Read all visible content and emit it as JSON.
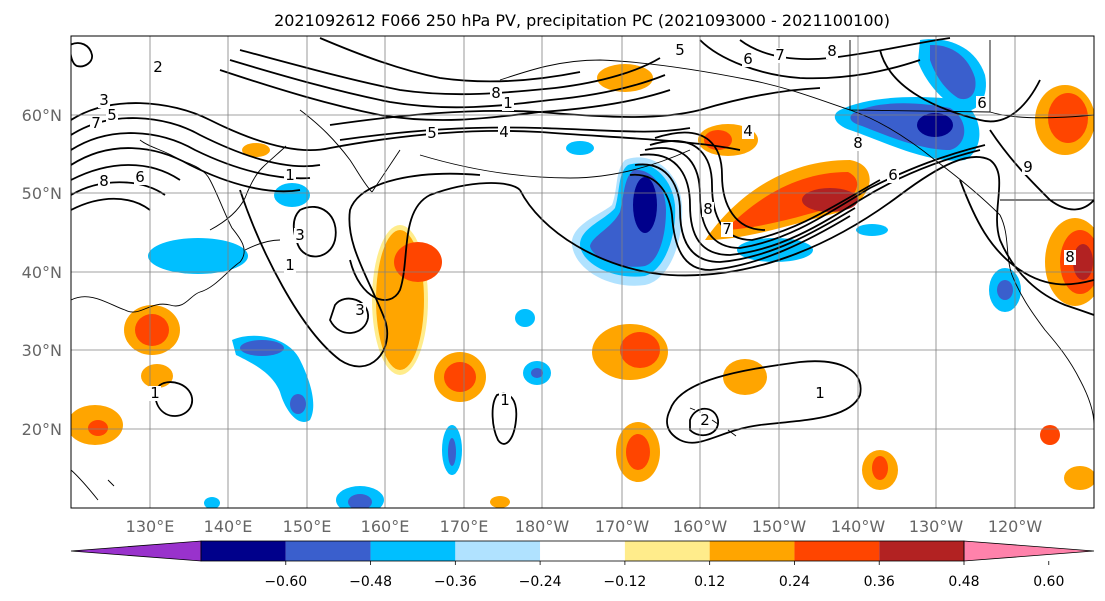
{
  "title": "2021092612 F066 250 hPa PV, precipitation PC (2021093000 - 2021100100)",
  "map": {
    "lat_labels": [
      "60°N",
      "50°N",
      "40°N",
      "30°N",
      "20°N"
    ],
    "lon_labels": [
      "130°E",
      "140°E",
      "150°E",
      "160°E",
      "170°E",
      "180°W",
      "170°W",
      "160°W",
      "150°W",
      "140°W",
      "130°W",
      "120°W"
    ],
    "contour_labels": [
      "2",
      "3",
      "5",
      "7",
      "8",
      "6",
      "8",
      "5",
      "6",
      "7",
      "8",
      "1",
      "5",
      "4",
      "1",
      "3",
      "3",
      "1",
      "1",
      "8",
      "4",
      "7",
      "8",
      "6",
      "9",
      "8",
      "6",
      "1",
      "1",
      "2"
    ]
  },
  "colorbar": {
    "colors": [
      "#9932cc",
      "#00008b",
      "#3a5fcd",
      "#00bfff",
      "#b0e2ff",
      "#ffffff",
      "#ffec8b",
      "#ffa500",
      "#ff4500",
      "#b22222",
      "#ff82ab"
    ],
    "ticks": [
      "−0.60",
      "−0.48",
      "−0.36",
      "−0.24",
      "−0.12",
      "0.12",
      "0.24",
      "0.36",
      "0.48",
      "0.60"
    ]
  },
  "colors": {
    "grid": "#808080",
    "contour": "#000000",
    "coast": "#000000"
  }
}
